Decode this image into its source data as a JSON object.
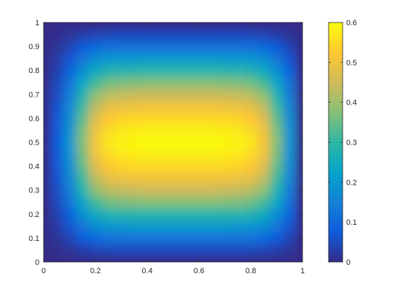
{
  "chart_data": {
    "type": "heatmap",
    "title": "",
    "xlabel": "",
    "ylabel": "",
    "xlim": [
      0,
      1
    ],
    "ylim": [
      0,
      1
    ],
    "x_ticks": [
      "0",
      "0.2",
      "0.4",
      "0.6",
      "0.8",
      "1"
    ],
    "y_ticks": [
      "0",
      "0.1",
      "0.2",
      "0.3",
      "0.4",
      "0.5",
      "0.6",
      "0.7",
      "0.8",
      "0.9",
      "1"
    ],
    "colorbar": {
      "range": [
        0,
        0.6
      ],
      "ticks": [
        "0",
        "0.1",
        "0.2",
        "0.3",
        "0.4",
        "0.5",
        "0.6"
      ],
      "colormap": "parula"
    },
    "grid": false,
    "z_description_max": 0.6,
    "x_grid": [
      0,
      0.05,
      0.1,
      0.15,
      0.2,
      0.25,
      0.3,
      0.35,
      0.4,
      0.45,
      0.5,
      0.55,
      0.6,
      0.65,
      0.7,
      0.75,
      0.8,
      0.85,
      0.9,
      0.95,
      1
    ],
    "y_grid": [
      0,
      0.05,
      0.1,
      0.15,
      0.2,
      0.25,
      0.3,
      0.35,
      0.4,
      0.45,
      0.5,
      0.55,
      0.6,
      0.65,
      0.7,
      0.75,
      0.8,
      0.85,
      0.9,
      0.95,
      1
    ],
    "z_x_profile": [
      0.0,
      0.12,
      0.32,
      0.62,
      0.85,
      0.95,
      0.98,
      0.99,
      1.0,
      1.0,
      1.0,
      1.0,
      1.0,
      1.0,
      0.99,
      0.98,
      0.95,
      0.85,
      0.62,
      0.32,
      0.0
    ],
    "z_y_profile": [
      0.0,
      0.08,
      0.2,
      0.34,
      0.48,
      0.62,
      0.74,
      0.84,
      0.92,
      0.97,
      1.0,
      0.97,
      0.92,
      0.84,
      0.74,
      0.62,
      0.48,
      0.34,
      0.2,
      0.08,
      0.0
    ],
    "z_peak": 0.6
  },
  "colors": {
    "parula_stops": [
      "#352a87",
      "#0f5cdd",
      "#1481d6",
      "#06a4ca",
      "#2eb7a4",
      "#87bf77",
      "#d1bb59",
      "#fec832",
      "#f9fb0e"
    ]
  }
}
